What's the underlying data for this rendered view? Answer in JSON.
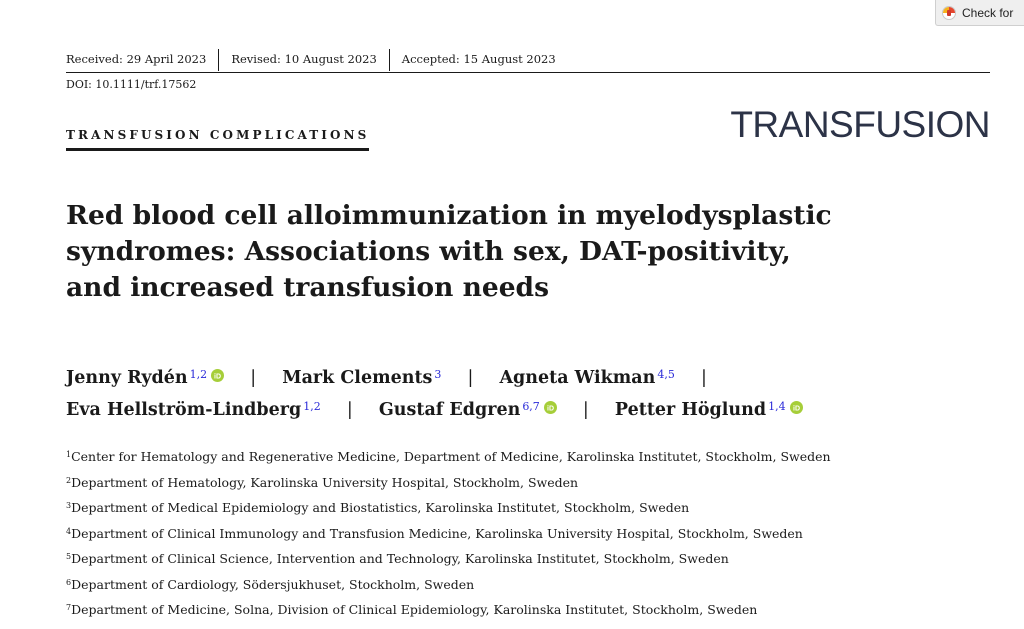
{
  "badge": {
    "label": "Check for"
  },
  "header": {
    "received": "Received: 29 April 2023",
    "revised": "Revised: 10 August 2023",
    "accepted": "Accepted: 15 August 2023",
    "doi": "DOI: 10.1111/trf.17562",
    "category": "TRANSFUSION COMPLICATIONS",
    "journal": "TRANSFUSION"
  },
  "title": {
    "line1": "Red blood cell alloimmunization in myelodysplastic",
    "line2": "syndromes: Associations with sex, DAT-positivity,",
    "line3": "and increased transfusion needs"
  },
  "authors": [
    {
      "name": "Jenny Rydén",
      "aff": "1,2",
      "orcid": true
    },
    {
      "name": "Mark Clements",
      "aff": "3",
      "orcid": false
    },
    {
      "name": "Agneta Wikman",
      "aff": "4,5",
      "orcid": false
    },
    {
      "name": "Eva Hellström-Lindberg",
      "aff": "1,2",
      "orcid": false
    },
    {
      "name": "Gustaf Edgren",
      "aff": "6,7",
      "orcid": true
    },
    {
      "name": "Petter Höglund",
      "aff": "1,4",
      "orcid": true
    }
  ],
  "separator": "|",
  "affiliations": [
    {
      "num": "1",
      "text": "Center for Hematology and Regenerative Medicine, Department of Medicine, Karolinska Institutet, Stockholm, Sweden"
    },
    {
      "num": "2",
      "text": "Department of Hematology, Karolinska University Hospital, Stockholm, Sweden"
    },
    {
      "num": "3",
      "text": "Department of Medical Epidemiology and Biostatistics, Karolinska Institutet, Stockholm, Sweden"
    },
    {
      "num": "4",
      "text": "Department of Clinical Immunology and Transfusion Medicine, Karolinska University Hospital, Stockholm, Sweden"
    },
    {
      "num": "5",
      "text": "Department of Clinical Science, Intervention and Technology, Karolinska Institutet, Stockholm, Sweden"
    },
    {
      "num": "6",
      "text": "Department of Cardiology, Södersjukhuset, Stockholm, Sweden"
    },
    {
      "num": "7",
      "text": "Department of Medicine, Solna, Division of Clinical Epidemiology, Karolinska Institutet, Stockholm, Sweden"
    }
  ],
  "colors": {
    "orcid": "#a6ce39",
    "superscript": "#2a2ad8",
    "journal": "#2c3347"
  }
}
